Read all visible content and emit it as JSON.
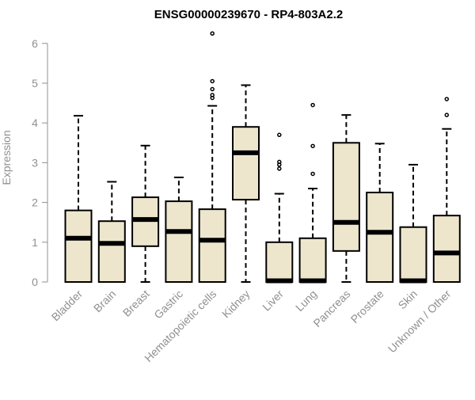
{
  "chart_data": {
    "type": "box",
    "title": "ENSG00000239670 - RP4-803A2.2",
    "ylabel": "Expression",
    "xlabel": "",
    "ylim": [
      0,
      6.3
    ],
    "yticks": [
      0,
      1,
      2,
      3,
      4,
      5,
      6
    ],
    "colors": {
      "box_fill": "#ede6cd",
      "stroke": "#000000",
      "axis": "#909090",
      "label": "#909090"
    },
    "categories": [
      "Bladder",
      "Brain",
      "Breast",
      "Gastric",
      "Hematopoietic cells",
      "Kidney",
      "Liver",
      "Lung",
      "Pancreas",
      "Prostate",
      "Skin",
      "Unknown / Other"
    ],
    "boxes": [
      {
        "name": "Bladder",
        "min": 0,
        "q1": 0,
        "median": 1.1,
        "q3": 1.8,
        "max": 4.18,
        "outliers": []
      },
      {
        "name": "Brain",
        "min": 0,
        "q1": 0,
        "median": 0.97,
        "q3": 1.53,
        "max": 2.52,
        "outliers": []
      },
      {
        "name": "Breast",
        "min": 0,
        "q1": 0.9,
        "median": 1.57,
        "q3": 2.13,
        "max": 3.43,
        "outliers": []
      },
      {
        "name": "Gastric",
        "min": 0,
        "q1": 0,
        "median": 1.27,
        "q3": 2.03,
        "max": 2.63,
        "outliers": []
      },
      {
        "name": "Hematopoietic cells",
        "min": 0,
        "q1": 0,
        "median": 1.05,
        "q3": 1.83,
        "max": 4.43,
        "outliers": [
          4.63,
          4.7,
          4.85,
          5.05,
          6.25
        ]
      },
      {
        "name": "Kidney",
        "min": 0,
        "q1": 2.07,
        "median": 3.25,
        "q3": 3.9,
        "max": 4.95,
        "outliers": []
      },
      {
        "name": "Liver",
        "min": 0,
        "q1": 0,
        "median": 0.03,
        "q3": 1.0,
        "max": 2.22,
        "outliers": [
          2.85,
          2.95,
          3.02,
          3.7
        ]
      },
      {
        "name": "Lung",
        "min": 0,
        "q1": 0,
        "median": 0.03,
        "q3": 1.1,
        "max": 2.35,
        "outliers": [
          2.72,
          3.42,
          4.45
        ]
      },
      {
        "name": "Pancreas",
        "min": 0,
        "q1": 0.78,
        "median": 1.5,
        "q3": 3.5,
        "max": 4.2,
        "outliers": []
      },
      {
        "name": "Prostate",
        "min": 0,
        "q1": 0,
        "median": 1.25,
        "q3": 2.25,
        "max": 3.48,
        "outliers": []
      },
      {
        "name": "Skin",
        "min": 0,
        "q1": 0,
        "median": 0.03,
        "q3": 1.38,
        "max": 2.95,
        "outliers": []
      },
      {
        "name": "Unknown / Other",
        "min": 0,
        "q1": 0,
        "median": 0.73,
        "q3": 1.67,
        "max": 3.85,
        "outliers": [
          4.2,
          4.6
        ]
      }
    ]
  }
}
